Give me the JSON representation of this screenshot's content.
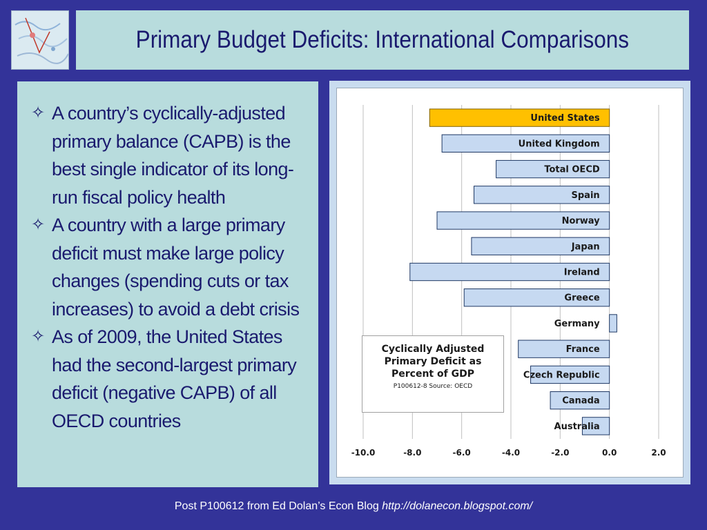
{
  "slide": {
    "title": "Primary Budget Deficits: International Comparisons",
    "bullets": [
      "A country’s cyclically-adjusted primary  balance (CAPB) is the best single indicator of its long-run fiscal policy health",
      "A country with a large primary deficit must make large policy changes (spending cuts or tax increases) to avoid a debt crisis",
      "As of 2009, the United States had the second-largest primary deficit (negative CAPB) of all OECD countries"
    ],
    "bullet_icon": "star-outline-icon",
    "footer_text": "Post P100612 from Ed Dolan’s Econ Blog ",
    "footer_url": "http://dolanecon.blogspot.com/"
  },
  "chart_data": {
    "type": "bar",
    "orientation": "horizontal",
    "title": "Cyclically Adjusted Primary Deficit as Percent of GDP",
    "source": "P100612-8 Source: OECD",
    "categories": [
      "United States",
      "United Kingdom",
      "Total OECD",
      "Spain",
      "Norway",
      "Japan",
      "Ireland",
      "Greece",
      "Germany",
      "France",
      "Czech Republic",
      "Canada",
      "Australia"
    ],
    "values": [
      -7.3,
      -6.8,
      -4.6,
      -5.5,
      -7.0,
      -5.6,
      -8.1,
      -5.9,
      0.3,
      -3.7,
      -3.2,
      -2.4,
      -1.1
    ],
    "highlight": "United States",
    "xlim": [
      -10.0,
      2.0
    ],
    "xticks": [
      "-10.0",
      "-8.0",
      "-6.0",
      "-4.0",
      "-2.0",
      "0.0",
      "2.0"
    ],
    "grid": true,
    "colors": {
      "bar": "#c6d9f1",
      "bar_border": "#1f3864",
      "highlight": "#ffc000",
      "grid": "#bfbfbf"
    }
  }
}
